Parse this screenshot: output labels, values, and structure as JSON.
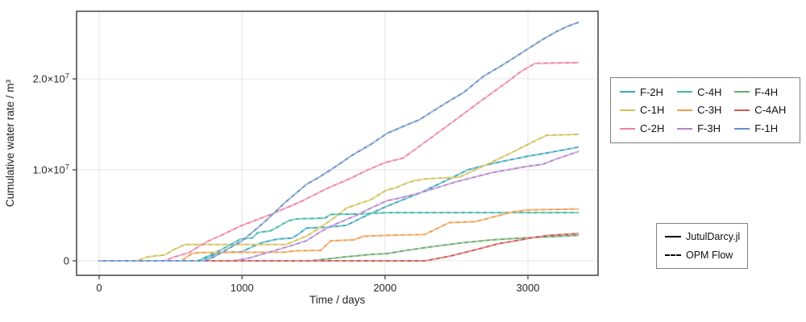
{
  "chart_data": {
    "type": "line",
    "title": "",
    "xlabel": "Time / days",
    "ylabel": "Cumulative water rate / m³",
    "xlim": [
      -160,
      3490
    ],
    "ylim": [
      -1800000,
      27600000
    ],
    "grid": true,
    "x_ticks": [
      {
        "value": 0,
        "label": "0"
      },
      {
        "value": 1000,
        "label": "1000"
      },
      {
        "value": 2000,
        "label": "2000"
      },
      {
        "value": 3000,
        "label": "3000"
      }
    ],
    "y_ticks": [
      {
        "value_e6": 0,
        "label": "0",
        "exp": ""
      },
      {
        "value_e6": 10,
        "label": "1.0×10",
        "exp": "7"
      },
      {
        "value_e6": 20,
        "label": "2.0×10",
        "exp": "7"
      }
    ],
    "units_note": "series points are [day, cumulative water in 1e6 m³]; each well is drawn twice: solid = JutulDarcy.jl, dashed = OPM Flow (curves coincide)",
    "series": [
      {
        "name": "F-2H",
        "color": "#3fa7c3",
        "points": [
          [
            0,
            0
          ],
          [
            700,
            0
          ],
          [
            780,
            0.5
          ],
          [
            840,
            0.9
          ],
          [
            1000,
            1.0
          ],
          [
            1080,
            1.6
          ],
          [
            1140,
            2.0
          ],
          [
            1250,
            2.4
          ],
          [
            1350,
            2.5
          ],
          [
            1400,
            3.0
          ],
          [
            1450,
            3.6
          ],
          [
            1600,
            3.7
          ],
          [
            1730,
            3.9
          ],
          [
            1900,
            5.2
          ],
          [
            2013,
            6.0
          ],
          [
            2250,
            7.5
          ],
          [
            2450,
            9.0
          ],
          [
            2580,
            10.0
          ],
          [
            2750,
            10.7
          ],
          [
            3000,
            11.5
          ],
          [
            3150,
            11.9
          ],
          [
            3350,
            12.5
          ]
        ]
      },
      {
        "name": "C-1H",
        "color": "#cfc055",
        "points": [
          [
            0,
            0
          ],
          [
            265,
            0
          ],
          [
            330,
            0.4
          ],
          [
            400,
            0.55
          ],
          [
            460,
            0.65
          ],
          [
            520,
            1.2
          ],
          [
            600,
            1.8
          ],
          [
            1310,
            1.8
          ],
          [
            1400,
            2.4
          ],
          [
            1450,
            2.7
          ],
          [
            1560,
            3.8
          ],
          [
            1660,
            4.9
          ],
          [
            1730,
            5.8
          ],
          [
            1820,
            6.3
          ],
          [
            1900,
            6.7
          ],
          [
            1960,
            7.3
          ],
          [
            2013,
            7.8
          ],
          [
            2070,
            8.0
          ],
          [
            2130,
            8.4
          ],
          [
            2200,
            8.8
          ],
          [
            2280,
            9.0
          ],
          [
            2520,
            9.2
          ],
          [
            2700,
            10.5
          ],
          [
            2900,
            12.0
          ],
          [
            3050,
            13.2
          ],
          [
            3130,
            13.8
          ],
          [
            3350,
            13.9
          ]
        ]
      },
      {
        "name": "C-2H",
        "color": "#ef7fa6",
        "points": [
          [
            0,
            0
          ],
          [
            460,
            0
          ],
          [
            520,
            0.4
          ],
          [
            630,
            0.9
          ],
          [
            700,
            1.6
          ],
          [
            780,
            2.3
          ],
          [
            840,
            2.7
          ],
          [
            1000,
            3.9
          ],
          [
            1200,
            5.1
          ],
          [
            1410,
            6.5
          ],
          [
            1600,
            8.0
          ],
          [
            1750,
            9.0
          ],
          [
            1880,
            10.0
          ],
          [
            2000,
            10.8
          ],
          [
            2127,
            11.3
          ],
          [
            2250,
            12.7
          ],
          [
            2450,
            15.0
          ],
          [
            2690,
            17.8
          ],
          [
            2850,
            19.6
          ],
          [
            2950,
            20.8
          ],
          [
            3050,
            21.7
          ],
          [
            3350,
            21.8
          ]
        ]
      },
      {
        "name": "C-4H",
        "color": "#42b6a7",
        "points": [
          [
            0,
            0
          ],
          [
            690,
            0
          ],
          [
            800,
            0.8
          ],
          [
            900,
            1.6
          ],
          [
            990,
            2.4
          ],
          [
            1070,
            2.5
          ],
          [
            1110,
            3.1
          ],
          [
            1200,
            3.3
          ],
          [
            1325,
            4.4
          ],
          [
            1380,
            4.6
          ],
          [
            1580,
            4.7
          ],
          [
            1620,
            5.1
          ],
          [
            1840,
            5.15
          ],
          [
            2013,
            5.3
          ],
          [
            3350,
            5.3
          ]
        ]
      },
      {
        "name": "C-3H",
        "color": "#f09d4e",
        "points": [
          [
            0,
            0
          ],
          [
            575,
            0
          ],
          [
            650,
            0.8
          ],
          [
            700,
            0.9
          ],
          [
            1300,
            0.95
          ],
          [
            1365,
            1.1
          ],
          [
            1550,
            1.15
          ],
          [
            1620,
            2.2
          ],
          [
            1780,
            2.3
          ],
          [
            1850,
            2.7
          ],
          [
            2013,
            2.8
          ],
          [
            2280,
            2.9
          ],
          [
            2450,
            4.2
          ],
          [
            2630,
            4.3
          ],
          [
            2900,
            5.4
          ],
          [
            3000,
            5.6
          ],
          [
            3350,
            5.7
          ]
        ]
      },
      {
        "name": "F-3H",
        "color": "#b385cf",
        "points": [
          [
            0,
            0
          ],
          [
            940,
            0
          ],
          [
            1050,
            0.3
          ],
          [
            1200,
            1.0
          ],
          [
            1350,
            1.7
          ],
          [
            1450,
            2.2
          ],
          [
            1550,
            3.2
          ],
          [
            1620,
            3.8
          ],
          [
            1800,
            5.0
          ],
          [
            1900,
            5.8
          ],
          [
            2013,
            6.6
          ],
          [
            2130,
            7.0
          ],
          [
            2250,
            7.5
          ],
          [
            2500,
            8.7
          ],
          [
            2750,
            9.7
          ],
          [
            3000,
            10.4
          ],
          [
            3100,
            10.6
          ],
          [
            3200,
            11.2
          ],
          [
            3350,
            12.0
          ]
        ]
      },
      {
        "name": "F-4H",
        "color": "#66ab69",
        "points": [
          [
            0,
            0
          ],
          [
            1480,
            0
          ],
          [
            1700,
            0.4
          ],
          [
            1900,
            0.7
          ],
          [
            2013,
            0.8
          ],
          [
            2127,
            1.1
          ],
          [
            2300,
            1.5
          ],
          [
            2550,
            2.0
          ],
          [
            2750,
            2.3
          ],
          [
            2950,
            2.5
          ],
          [
            3100,
            2.6
          ],
          [
            3350,
            2.8
          ]
        ]
      },
      {
        "name": "C-4AH",
        "color": "#cf5a54",
        "points": [
          [
            0,
            0
          ],
          [
            2280,
            0
          ],
          [
            2450,
            0.5
          ],
          [
            2630,
            1.2
          ],
          [
            2800,
            1.9
          ],
          [
            2950,
            2.3
          ],
          [
            3050,
            2.6
          ],
          [
            3150,
            2.8
          ],
          [
            3250,
            2.9
          ],
          [
            3350,
            3.0
          ]
        ]
      },
      {
        "name": "F-1H",
        "color": "#6590c7",
        "points": [
          [
            0,
            0
          ],
          [
            740,
            0
          ],
          [
            800,
            0.4
          ],
          [
            900,
            1.3
          ],
          [
            1000,
            2.2
          ],
          [
            1100,
            3.5
          ],
          [
            1180,
            4.6
          ],
          [
            1300,
            6.4
          ],
          [
            1450,
            8.4
          ],
          [
            1550,
            9.3
          ],
          [
            1620,
            10.0
          ],
          [
            1770,
            11.6
          ],
          [
            1900,
            12.8
          ],
          [
            2013,
            14.0
          ],
          [
            2130,
            14.8
          ],
          [
            2240,
            15.5
          ],
          [
            2400,
            17.1
          ],
          [
            2550,
            18.5
          ],
          [
            2690,
            20.3
          ],
          [
            2800,
            21.3
          ],
          [
            2900,
            22.3
          ],
          [
            3000,
            23.3
          ],
          [
            3100,
            24.3
          ],
          [
            3200,
            25.2
          ],
          [
            3280,
            25.8
          ],
          [
            3350,
            26.2
          ]
        ]
      }
    ],
    "legend_position": "right"
  },
  "legend_sources": {
    "items": [
      {
        "label": "JutulDarcy.jl",
        "style": "solid"
      },
      {
        "label": "OPM Flow",
        "style": "dashed"
      }
    ]
  },
  "style": {
    "frame_color": "#4f4f4f",
    "grid_color": "#e4e4e4",
    "text_color": "#262626",
    "legend_border_color": "#808080",
    "background": "#ffffff"
  }
}
